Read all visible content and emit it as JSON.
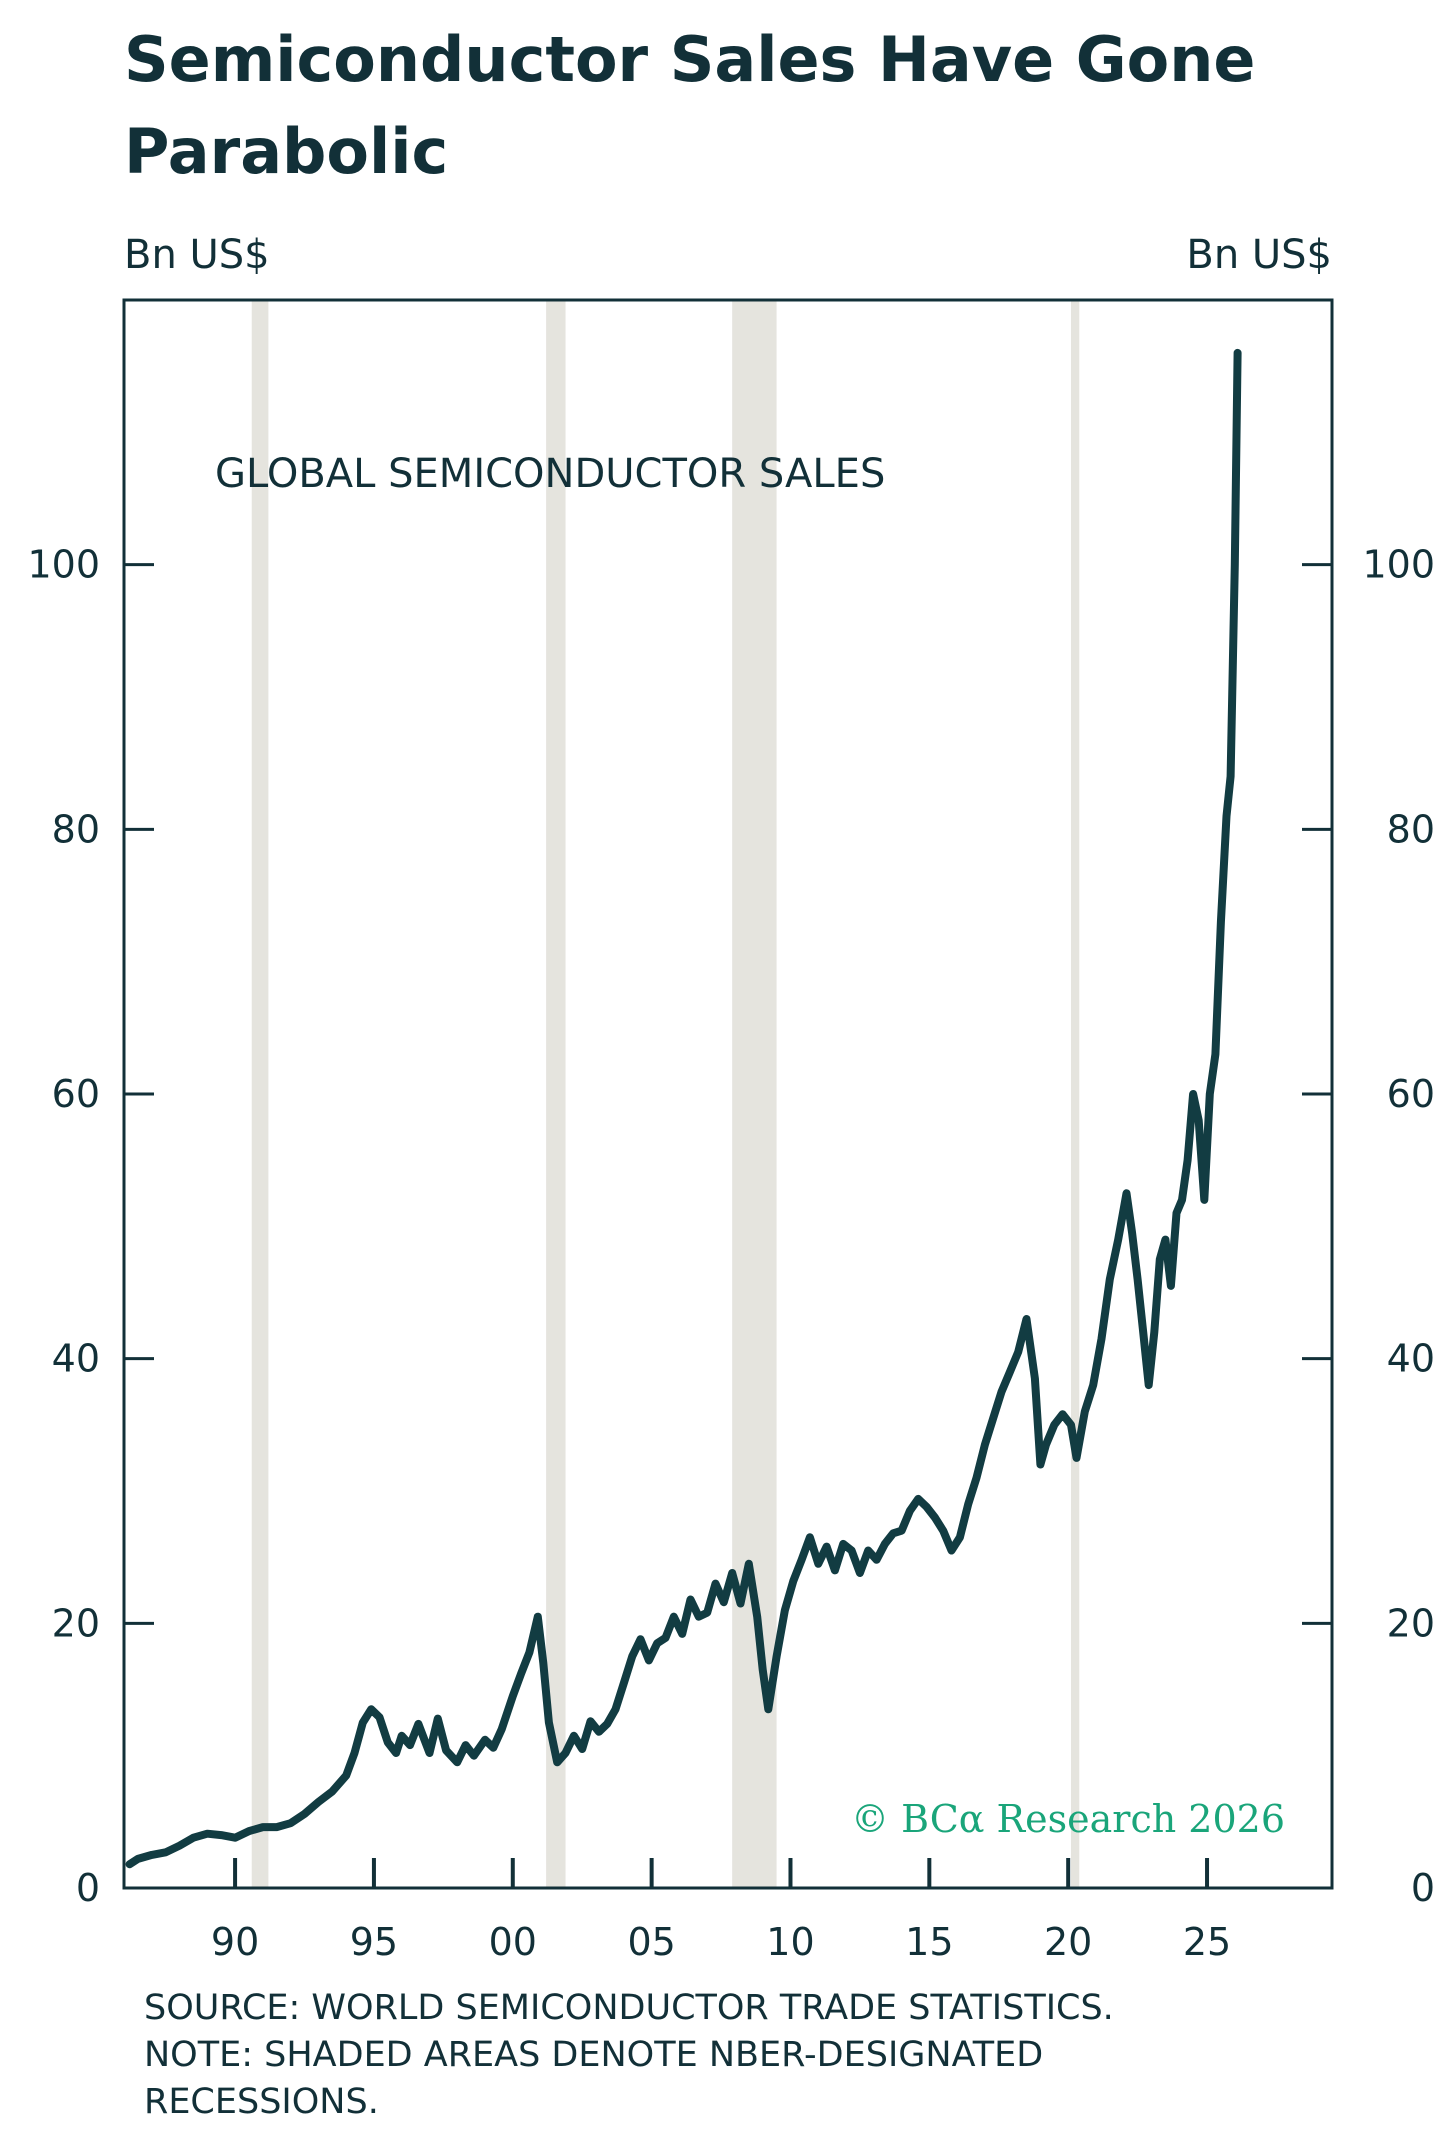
{
  "title": "Semiconductor Sales Have Gone Parabolic",
  "source_lines": [
    "SOURCE: WORLD SEMICONDUCTOR TRADE STATISTICS.",
    "NOTE: SHADED AREAS DENOTE NBER-DESIGNATED",
    "RECESSIONS."
  ],
  "copyright": "© BCα Research 2026",
  "colors": {
    "line": "#123c42",
    "text": "#123038",
    "recession": "#e5e4de",
    "copyright": "#1aa57a"
  },
  "chart_data": {
    "type": "line",
    "title": "GLOBAL SEMICONDUCTOR SALES",
    "ylabel_left": "Bn US$",
    "ylabel_right": "Bn US$",
    "ylim": [
      0,
      120
    ],
    "yticks": [
      0,
      20,
      40,
      60,
      80,
      100
    ],
    "ytick_labels": [
      "0",
      "20",
      "40",
      "60",
      "80",
      "100"
    ],
    "xlim": [
      1986,
      2029.5
    ],
    "xticks": [
      1990,
      1995,
      2000,
      2005,
      2010,
      2015,
      2020,
      2025
    ],
    "xtick_labels": [
      "90",
      "95",
      "00",
      "05",
      "10",
      "15",
      "20",
      "25"
    ],
    "recessions": [
      [
        1990.6,
        1991.2
      ],
      [
        2001.2,
        2001.9
      ],
      [
        2007.9,
        2009.5
      ],
      [
        2020.1,
        2020.4
      ]
    ],
    "series": [
      {
        "name": "GLOBAL SEMICONDUCTOR SALES",
        "x": [
          1986.2,
          1986.5,
          1987.0,
          1987.5,
          1988.0,
          1988.5,
          1989.0,
          1989.5,
          1990.0,
          1990.5,
          1991.0,
          1991.5,
          1992.0,
          1992.5,
          1993.0,
          1993.5,
          1994.0,
          1994.3,
          1994.6,
          1994.9,
          1995.2,
          1995.5,
          1995.8,
          1996.0,
          1996.3,
          1996.6,
          1997.0,
          1997.3,
          1997.6,
          1998.0,
          1998.3,
          1998.6,
          1999.0,
          1999.3,
          1999.6,
          2000.0,
          2000.3,
          2000.6,
          2000.9,
          2001.1,
          2001.3,
          2001.6,
          2001.9,
          2002.2,
          2002.5,
          2002.8,
          2003.1,
          2003.4,
          2003.7,
          2004.0,
          2004.3,
          2004.6,
          2004.9,
          2005.2,
          2005.5,
          2005.8,
          2006.1,
          2006.4,
          2006.7,
          2007.0,
          2007.3,
          2007.6,
          2007.9,
          2008.2,
          2008.5,
          2008.8,
          2009.0,
          2009.2,
          2009.5,
          2009.8,
          2010.1,
          2010.4,
          2010.7,
          2011.0,
          2011.3,
          2011.6,
          2011.9,
          2012.2,
          2012.5,
          2012.8,
          2013.1,
          2013.4,
          2013.7,
          2014.0,
          2014.3,
          2014.6,
          2014.9,
          2015.2,
          2015.5,
          2015.8,
          2016.1,
          2016.4,
          2016.7,
          2017.0,
          2017.3,
          2017.6,
          2017.9,
          2018.2,
          2018.5,
          2018.8,
          2019.0,
          2019.2,
          2019.5,
          2019.8,
          2020.1,
          2020.3,
          2020.6,
          2020.9,
          2021.2,
          2021.5,
          2021.8,
          2022.1,
          2022.3,
          2022.5,
          2022.7,
          2022.9,
          2023.1,
          2023.3,
          2023.5,
          2023.7,
          2023.9,
          2024.1,
          2024.3,
          2024.5,
          2024.7,
          2024.9,
          2025.1,
          2025.3,
          2025.5,
          2025.7,
          2025.85,
          2026.0,
          2026.1
        ],
        "values": [
          1.8,
          2.2,
          2.5,
          2.7,
          3.2,
          3.8,
          4.1,
          4.0,
          3.8,
          4.3,
          4.6,
          4.6,
          4.9,
          5.6,
          6.5,
          7.3,
          8.5,
          10.2,
          12.5,
          13.5,
          12.9,
          11.0,
          10.2,
          11.5,
          10.8,
          12.4,
          10.2,
          12.8,
          10.4,
          9.5,
          10.8,
          10.0,
          11.2,
          10.6,
          12.0,
          14.5,
          16.2,
          17.8,
          20.5,
          17.0,
          12.5,
          9.5,
          10.2,
          11.5,
          10.5,
          12.6,
          11.8,
          12.4,
          13.5,
          15.5,
          17.5,
          18.8,
          17.2,
          18.5,
          18.9,
          20.5,
          19.2,
          21.8,
          20.5,
          20.8,
          23.0,
          21.6,
          23.8,
          21.5,
          24.5,
          20.5,
          16.5,
          13.5,
          17.5,
          21.0,
          23.2,
          24.8,
          26.5,
          24.5,
          25.8,
          24.0,
          26.0,
          25.5,
          23.8,
          25.5,
          24.8,
          26.0,
          26.8,
          27.0,
          28.5,
          29.4,
          28.8,
          28.0,
          27.0,
          25.5,
          26.5,
          29.0,
          31.0,
          33.5,
          35.5,
          37.5,
          39.0,
          40.5,
          43.0,
          38.5,
          32.0,
          33.5,
          35.0,
          35.8,
          35.0,
          32.5,
          36.0,
          38.0,
          41.5,
          46.0,
          49.0,
          52.5,
          49.5,
          46.0,
          42.0,
          38.0,
          42.0,
          47.5,
          49.0,
          45.5,
          51.0,
          52.0,
          55.0,
          60.0,
          58.0,
          52.0,
          60.0,
          63.0,
          73.0,
          81.0,
          84.0,
          100.0,
          116.0
        ]
      }
    ]
  }
}
